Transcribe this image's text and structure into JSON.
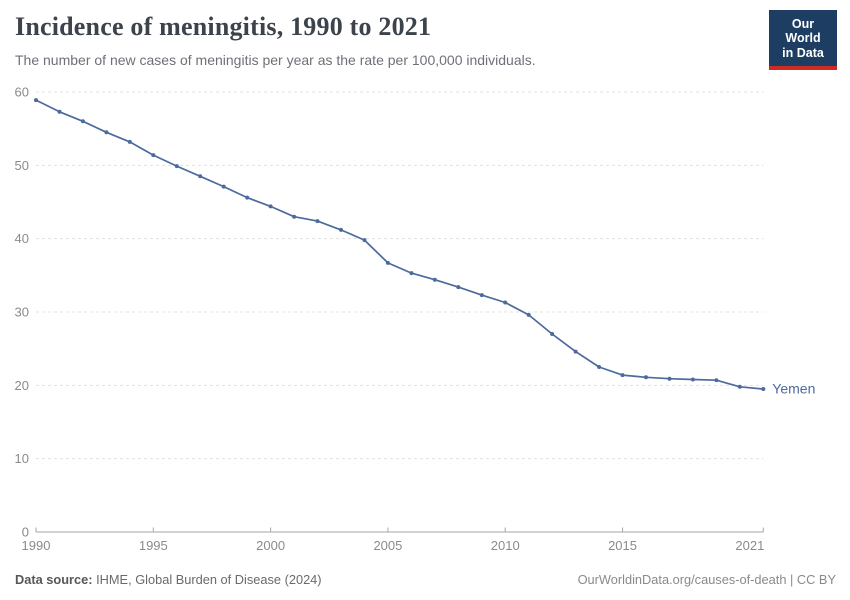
{
  "header": {
    "title": "Incidence of meningitis, 1990 to 2021",
    "subtitle": "The number of new cases of meningitis per year as the rate per 100,000 individuals.",
    "logo": {
      "line1": "Our World",
      "line2": "in Data"
    }
  },
  "chart_data": {
    "type": "line",
    "title": "Incidence of meningitis, 1990 to 2021",
    "xlabel": "",
    "ylabel": "",
    "xlim": [
      1990,
      2021
    ],
    "ylim": [
      0,
      60
    ],
    "x_ticks": [
      1990,
      1995,
      2000,
      2005,
      2010,
      2015,
      2021
    ],
    "y_ticks": [
      0,
      10,
      20,
      30,
      40,
      50,
      60
    ],
    "grid": "horizontal-dashed",
    "legend_position": "end-of-line-label",
    "series": [
      {
        "name": "Yemen",
        "color": "#4c6a9c",
        "x": [
          1990,
          1991,
          1992,
          1993,
          1994,
          1995,
          1996,
          1997,
          1998,
          1999,
          2000,
          2001,
          2002,
          2003,
          2004,
          2005,
          2006,
          2007,
          2008,
          2009,
          2010,
          2011,
          2012,
          2013,
          2014,
          2015,
          2016,
          2017,
          2018,
          2019,
          2020,
          2021
        ],
        "values": [
          58.9,
          57.3,
          56.0,
          54.5,
          53.2,
          51.4,
          49.9,
          48.5,
          47.1,
          45.6,
          44.4,
          43.0,
          42.4,
          41.2,
          39.8,
          36.7,
          35.3,
          34.4,
          33.4,
          32.3,
          31.3,
          29.6,
          27.0,
          24.6,
          22.5,
          21.4,
          21.1,
          20.9,
          20.8,
          20.7,
          19.8,
          19.5
        ]
      }
    ]
  },
  "footer": {
    "datasource_label": "Data source:",
    "datasource_value": " IHME, Global Burden of Disease (2024)",
    "credit": "OurWorldinData.org/causes-of-death | CC BY"
  },
  "colors": {
    "line": "#4c6a9c",
    "title_text": "#3d434c",
    "subtitle_text": "#6d7178",
    "axis_text": "#8b8b8b",
    "gridline": "#e0e0e0",
    "axis_line": "#a6a6a6",
    "logo_bg": "#1d3d63",
    "logo_bar": "#d02b20"
  }
}
